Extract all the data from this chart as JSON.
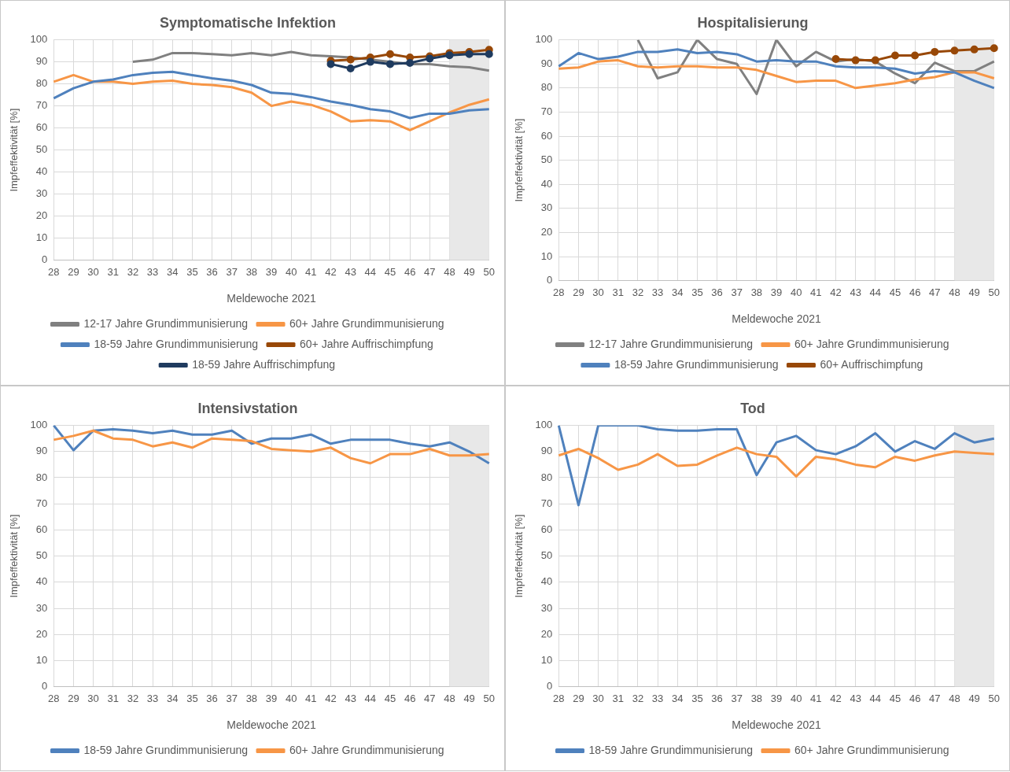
{
  "chart_data": [
    {
      "type": "line",
      "title": "Symptomatische Infektion",
      "xlabel": "Meldewoche 2021",
      "ylabel": "Impfeffektivität [%]",
      "categories": [
        "28",
        "29",
        "30",
        "31",
        "32",
        "33",
        "34",
        "35",
        "36",
        "37",
        "38",
        "39",
        "40",
        "41",
        "42",
        "43",
        "44",
        "45",
        "46",
        "47",
        "48",
        "49",
        "50"
      ],
      "ylim": [
        0,
        100
      ],
      "yticks": [
        0,
        10,
        20,
        30,
        40,
        50,
        60,
        70,
        80,
        90,
        100
      ],
      "grid": true,
      "legend": "bottom",
      "bands": [
        {
          "axis": "x",
          "from": "48",
          "to": "50",
          "color": "#e8e8e8"
        }
      ],
      "series": [
        {
          "name": "12-17 Jahre Grundimmunisierung",
          "color": "#808080",
          "marker": "none",
          "values": [
            null,
            null,
            null,
            null,
            90,
            91,
            94,
            94,
            93.5,
            93,
            94,
            93,
            94.5,
            93,
            92.5,
            92,
            91,
            90,
            89,
            89,
            88,
            87.5,
            86
          ]
        },
        {
          "name": "60+ Jahre Grundimmunisierung",
          "color": "#f79646",
          "marker": "none",
          "values": [
            81,
            84,
            81,
            81,
            80,
            81,
            81.5,
            80,
            79.5,
            78.5,
            76,
            70,
            72,
            70.5,
            67.5,
            63,
            63.5,
            63,
            59,
            63,
            67,
            70.5,
            73
          ]
        },
        {
          "name": "18-59 Jahre Grundimmunisierung",
          "color": "#4f81bd",
          "marker": "none",
          "values": [
            73.5,
            78,
            81,
            82,
            84,
            85,
            85.5,
            84,
            82.5,
            81.5,
            79.5,
            76,
            75.5,
            74,
            72,
            70.5,
            68.5,
            67.5,
            64.5,
            66.5,
            66.5,
            68,
            68.5
          ]
        },
        {
          "name": "60+ Jahre Auffrischimpfung",
          "color": "#984807",
          "marker": "circle",
          "values": [
            null,
            null,
            null,
            null,
            null,
            null,
            null,
            null,
            null,
            null,
            null,
            null,
            null,
            null,
            90.5,
            91,
            92,
            93.5,
            92,
            92.5,
            94,
            94.5,
            95.5
          ]
        },
        {
          "name": "18-59 Jahre Auffrischimpfung",
          "color": "#1f3b5f",
          "marker": "circle",
          "values": [
            null,
            null,
            null,
            null,
            null,
            null,
            null,
            null,
            null,
            null,
            null,
            null,
            null,
            null,
            89,
            87,
            90,
            89,
            89.5,
            91.5,
            93,
            93.5,
            93.5
          ]
        }
      ]
    },
    {
      "type": "line",
      "title": "Hospitalisierung",
      "xlabel": "Meldewoche 2021",
      "ylabel": "Impfeffektivität [%]",
      "categories": [
        "28",
        "29",
        "30",
        "31",
        "32",
        "33",
        "34",
        "35",
        "36",
        "37",
        "38",
        "39",
        "40",
        "41",
        "42",
        "43",
        "44",
        "45",
        "46",
        "47",
        "48",
        "49",
        "50"
      ],
      "ylim": [
        0,
        100
      ],
      "yticks": [
        0,
        10,
        20,
        30,
        40,
        50,
        60,
        70,
        80,
        90,
        100
      ],
      "grid": true,
      "legend": "bottom",
      "bands": [
        {
          "axis": "x",
          "from": "48",
          "to": "50",
          "color": "#e8e8e8"
        }
      ],
      "series": [
        {
          "name": "12-17 Jahre Grundimmunisierung",
          "color": "#808080",
          "marker": "none",
          "values": [
            null,
            null,
            null,
            null,
            100,
            84,
            86.5,
            100,
            92,
            90,
            77.5,
            100,
            89,
            95,
            91,
            92,
            91,
            86,
            82,
            90.5,
            87,
            87,
            91
          ]
        },
        {
          "name": "60+ Jahre Grundimmunisierung",
          "color": "#f79646",
          "marker": "none",
          "values": [
            88,
            88.5,
            91,
            91.5,
            89,
            88.5,
            89,
            89,
            88.5,
            88.5,
            87.5,
            85,
            82.5,
            83,
            83,
            80,
            81,
            82,
            83.5,
            84.5,
            86.5,
            86.5,
            84
          ]
        },
        {
          "name": "18-59 Jahre Grundimmunisierung",
          "color": "#4f81bd",
          "marker": "none",
          "values": [
            89,
            94.5,
            92,
            93,
            95,
            95,
            96,
            94.5,
            95,
            94,
            91,
            91.5,
            91,
            91,
            89,
            88.5,
            88.5,
            88,
            86,
            87,
            86.5,
            83,
            80
          ]
        },
        {
          "name": "60+ Auffrischimpfung",
          "color": "#984807",
          "marker": "circle",
          "values": [
            null,
            null,
            null,
            null,
            null,
            null,
            null,
            null,
            null,
            null,
            null,
            null,
            null,
            null,
            92,
            91.5,
            91.5,
            93.5,
            93.5,
            95,
            95.5,
            96,
            96.5
          ]
        }
      ]
    },
    {
      "type": "line",
      "title": "Intensivstation",
      "xlabel": "Meldewoche 2021",
      "ylabel": "Impfeffektivität [%]",
      "categories": [
        "28",
        "29",
        "30",
        "31",
        "32",
        "33",
        "34",
        "35",
        "36",
        "37",
        "38",
        "39",
        "40",
        "41",
        "42",
        "43",
        "44",
        "45",
        "46",
        "47",
        "48",
        "49",
        "50"
      ],
      "ylim": [
        0,
        100
      ],
      "yticks": [
        0,
        10,
        20,
        30,
        40,
        50,
        60,
        70,
        80,
        90,
        100
      ],
      "grid": true,
      "legend": "bottom",
      "bands": [
        {
          "axis": "x",
          "from": "48",
          "to": "50",
          "color": "#e8e8e8"
        }
      ],
      "series": [
        {
          "name": "18-59 Jahre Grundimmunisierung",
          "color": "#4f81bd",
          "marker": "none",
          "values": [
            100,
            90.5,
            98,
            98.5,
            98,
            97,
            98,
            96.5,
            96.5,
            98,
            93,
            95,
            95,
            96.5,
            93,
            94.5,
            94.5,
            94.5,
            93,
            92,
            93.5,
            90,
            85.5
          ]
        },
        {
          "name": "60+ Jahre Grundimmunisierung",
          "color": "#f79646",
          "marker": "none",
          "values": [
            94.5,
            96,
            98,
            95,
            94.5,
            92,
            93.5,
            91.5,
            95,
            94.5,
            94,
            91,
            90.5,
            90,
            91.5,
            87.5,
            85.5,
            89,
            89,
            91,
            88.5,
            88.5,
            89
          ]
        }
      ]
    },
    {
      "type": "line",
      "title": "Tod",
      "xlabel": "Meldewoche 2021",
      "ylabel": "Impfeffektivität [%]",
      "categories": [
        "28",
        "29",
        "30",
        "31",
        "32",
        "33",
        "34",
        "35",
        "36",
        "37",
        "38",
        "39",
        "40",
        "41",
        "42",
        "43",
        "44",
        "45",
        "46",
        "47",
        "48",
        "49",
        "50"
      ],
      "ylim": [
        0,
        100
      ],
      "yticks": [
        0,
        10,
        20,
        30,
        40,
        50,
        60,
        70,
        80,
        90,
        100
      ],
      "grid": true,
      "legend": "bottom",
      "bands": [
        {
          "axis": "x",
          "from": "48",
          "to": "50",
          "color": "#e8e8e8"
        }
      ],
      "series": [
        {
          "name": "18-59 Jahre Grundimmunisierung",
          "color": "#4f81bd",
          "marker": "none",
          "values": [
            100,
            69.5,
            100,
            100,
            100,
            98.5,
            98,
            98,
            98.5,
            98.5,
            81,
            93.5,
            96,
            90.5,
            89,
            92,
            97,
            90,
            94,
            91,
            97,
            93.5,
            95
          ]
        },
        {
          "name": "60+ Jahre Grundimmunisierung",
          "color": "#f79646",
          "marker": "none",
          "values": [
            88.5,
            91,
            87.5,
            83,
            85,
            89,
            84.5,
            85,
            88.5,
            91.5,
            89,
            88,
            80.5,
            88,
            87,
            85,
            84,
            88,
            86.5,
            88.5,
            90,
            89.5,
            89
          ]
        }
      ]
    }
  ]
}
